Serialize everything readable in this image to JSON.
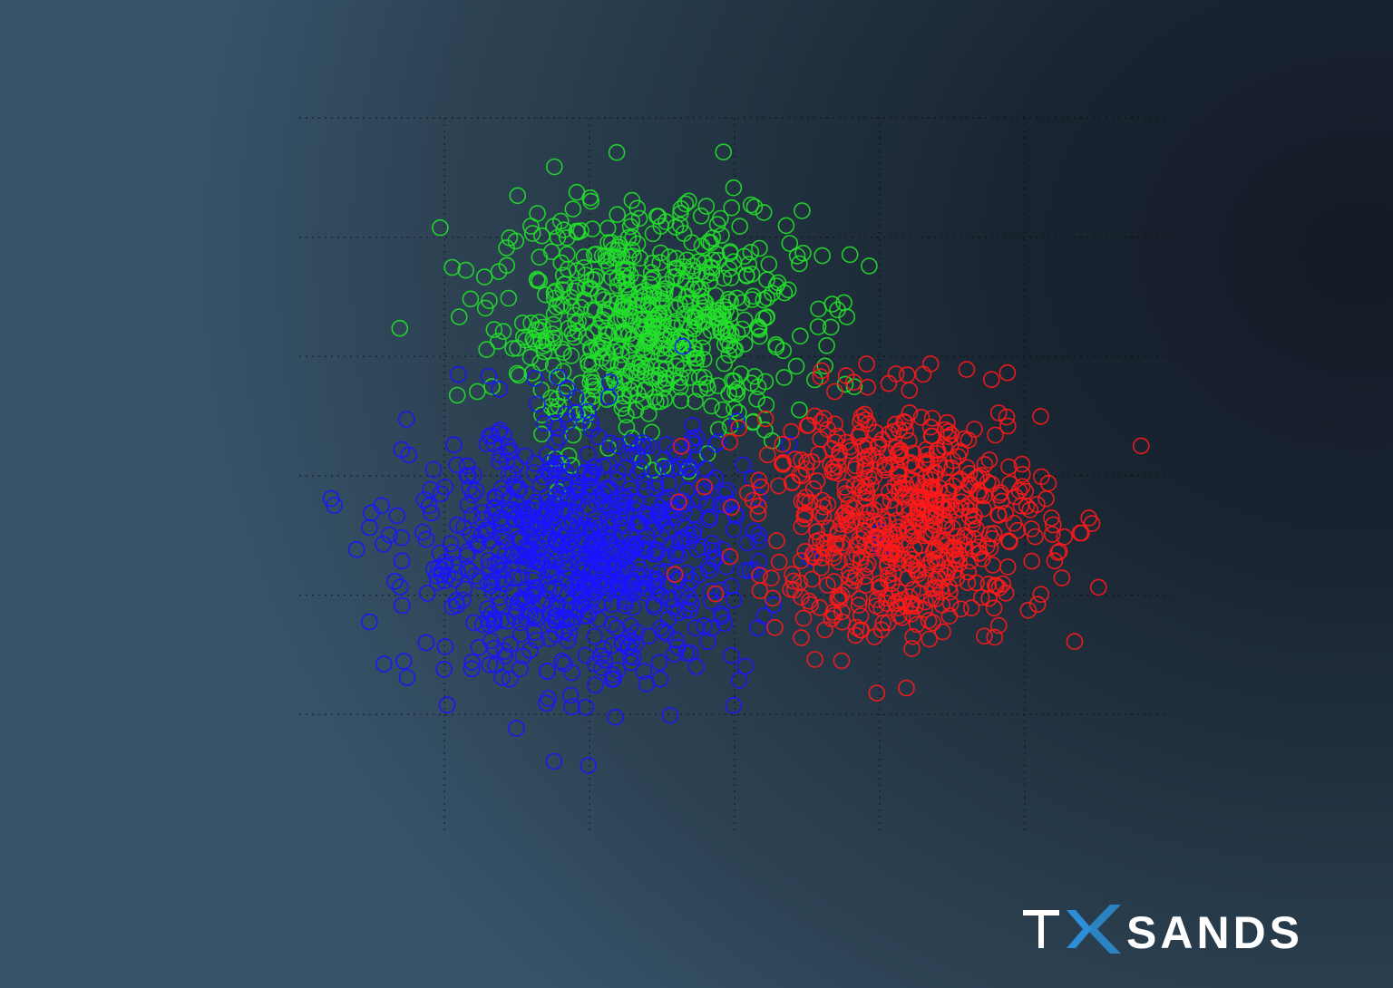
{
  "colors": {
    "background": "#1b2836",
    "grid": "#000000",
    "brand_text": "#ffffff",
    "brand_accent": "#2c8fd6"
  },
  "brand": {
    "logo_text": "TXSANDS"
  },
  "chart_data": {
    "type": "scatter",
    "title": "",
    "xlabel": "",
    "ylabel": "",
    "grid": true,
    "legend": "none",
    "marker": "hollow-circle",
    "xlim": [
      -6,
      6
    ],
    "ylim": [
      -6,
      6
    ],
    "series": [
      {
        "color": "#22e02a",
        "center": [
          -1.2,
          2.6
        ],
        "spread": [
          1.05,
          0.95
        ],
        "count": 620
      },
      {
        "color": "#1a14ff",
        "center": [
          -2.1,
          -1.3
        ],
        "spread": [
          1.15,
          1.05
        ],
        "count": 820
      },
      {
        "color": "#ff1a1a",
        "center": [
          2.3,
          -0.7
        ],
        "spread": [
          1.0,
          1.0
        ],
        "count": 620
      }
    ]
  }
}
